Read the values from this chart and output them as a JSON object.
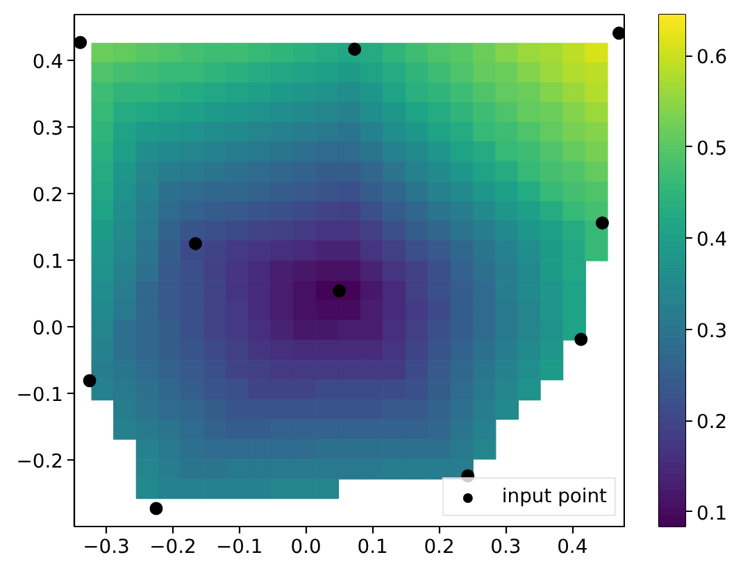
{
  "chart_data": {
    "type": "scatter",
    "marker": "square",
    "clim": [
      0.084,
      0.645
    ],
    "cticks": [
      0.1,
      0.2,
      0.3,
      0.4,
      0.5,
      0.6
    ],
    "xlim": [
      -0.348,
      0.48
    ],
    "ylim": [
      -0.3,
      0.469
    ],
    "xticks": [
      {
        "value": -0.3,
        "label": "−0.3"
      },
      {
        "value": -0.2,
        "label": "−0.2"
      },
      {
        "value": -0.1,
        "label": "−0.1"
      },
      {
        "value": 0,
        "label": "0.0"
      },
      0.1,
      0.2,
      0.3,
      0.4
    ],
    "yticks": [
      {
        "value": -0.2,
        "label": "−0.2"
      },
      {
        "value": -0.1,
        "label": "−0.1"
      },
      {
        "value": 0,
        "label": "0.0"
      },
      0.1,
      0.2,
      0.3,
      0.4
    ],
    "x": [
      -0.305,
      -0.272,
      -0.238,
      -0.204,
      -0.171,
      -0.137,
      -0.103,
      -0.069,
      -0.036,
      -0.002,
      0.032,
      0.066,
      0.099,
      0.133,
      0.167,
      0.2,
      0.234,
      0.268,
      0.302,
      0.335,
      0.369,
      0.403,
      0.436,
      -0.305,
      -0.272,
      -0.238,
      -0.204,
      -0.171,
      -0.137,
      -0.103,
      -0.069,
      -0.036,
      -0.002,
      0.032,
      0.066,
      0.099,
      0.133,
      0.167,
      0.2,
      0.234,
      0.268,
      0.302,
      0.335,
      0.369,
      0.403,
      0.436,
      -0.305,
      -0.272,
      -0.238,
      -0.204,
      -0.171,
      -0.137,
      -0.103,
      -0.069,
      -0.036,
      -0.002,
      0.032,
      0.066,
      0.099,
      0.133,
      0.167,
      0.2,
      0.234,
      0.268,
      0.302,
      0.335,
      0.369,
      0.403,
      0.436,
      -0.305,
      -0.272,
      -0.238,
      -0.204,
      -0.171,
      -0.137,
      -0.103,
      -0.069,
      -0.036,
      -0.002,
      0.032,
      0.066,
      0.099,
      0.133,
      0.167,
      0.2,
      0.234,
      0.268,
      0.302,
      0.335,
      0.369,
      0.403,
      0.436,
      -0.305,
      -0.272,
      -0.238,
      -0.204,
      -0.171,
      -0.137,
      -0.103,
      -0.069,
      -0.036,
      -0.002,
      0.032,
      0.066,
      0.099,
      0.133,
      0.167,
      0.2,
      0.234,
      0.268,
      0.302,
      0.335,
      0.369,
      0.403,
      0.436,
      -0.305,
      -0.272,
      -0.238,
      -0.204,
      -0.171,
      -0.137,
      -0.103,
      -0.069,
      -0.036,
      -0.002,
      0.032,
      0.066,
      0.099,
      0.133,
      0.167,
      0.2,
      0.234,
      0.268,
      0.302,
      0.335,
      0.369,
      0.403,
      0.436,
      -0.305,
      -0.272,
      -0.238,
      -0.204,
      -0.171,
      -0.137,
      -0.103,
      -0.069,
      -0.036,
      -0.002,
      0.032,
      0.066,
      0.099,
      0.133,
      0.167,
      0.2,
      0.234,
      0.268,
      0.302,
      0.335,
      0.369,
      0.403,
      0.436,
      -0.305,
      -0.272,
      -0.238,
      -0.204,
      -0.171,
      -0.137,
      -0.103,
      -0.069,
      -0.036,
      -0.002,
      0.032,
      0.066,
      0.099,
      0.133,
      0.167,
      0.2,
      0.234,
      0.268,
      0.302,
      0.335,
      0.369,
      0.403,
      0.436,
      -0.305,
      -0.272,
      -0.238,
      -0.204,
      -0.171,
      -0.137,
      -0.103,
      -0.069,
      -0.036,
      -0.002,
      0.032,
      0.066,
      0.099,
      0.133,
      0.167,
      0.2,
      0.234,
      0.268,
      0.302,
      0.335,
      0.369,
      0.403,
      0.436,
      -0.305,
      -0.272,
      -0.238,
      -0.204,
      -0.171,
      -0.137,
      -0.103,
      -0.069,
      -0.036,
      -0.002,
      0.032,
      0.066,
      0.099,
      0.133,
      0.167,
      0.2,
      0.234,
      0.268,
      0.302,
      0.335,
      0.369,
      0.403,
      0.436,
      -0.305,
      -0.272,
      -0.238,
      -0.204,
      -0.171,
      -0.137,
      -0.103,
      -0.069,
      -0.036,
      -0.002,
      0.032,
      0.066,
      0.099,
      0.133,
      0.167,
      0.2,
      0.234,
      0.268,
      0.302,
      0.335,
      0.369,
      0.403,
      0.436,
      -0.305,
      -0.272,
      -0.238,
      -0.204,
      -0.171,
      -0.137,
      -0.103,
      -0.069,
      -0.036,
      -0.002,
      0.032,
      0.066,
      0.099,
      0.133,
      0.167,
      0.2,
      0.234,
      0.268,
      0.302,
      0.335,
      0.369,
      0.403,
      -0.305,
      -0.272,
      -0.238,
      -0.204,
      -0.171,
      -0.137,
      -0.103,
      -0.069,
      -0.036,
      -0.002,
      0.032,
      0.066,
      0.099,
      0.133,
      0.167,
      0.2,
      0.234,
      0.268,
      0.302,
      0.335,
      0.369,
      0.403,
      -0.305,
      -0.272,
      -0.238,
      -0.204,
      -0.171,
      -0.137,
      -0.103,
      -0.069,
      -0.036,
      -0.002,
      0.032,
      0.066,
      0.099,
      0.133,
      0.167,
      0.2,
      0.234,
      0.268,
      0.302,
      0.335,
      0.369,
      0.403,
      -0.305,
      -0.272,
      -0.238,
      -0.204,
      -0.171,
      -0.137,
      -0.103,
      -0.069,
      -0.036,
      -0.002,
      0.032,
      0.066,
      0.099,
      0.133,
      0.167,
      0.2,
      0.234,
      0.268,
      0.302,
      0.335,
      0.369,
      0.403,
      -0.305,
      -0.272,
      -0.238,
      -0.204,
      -0.171,
      -0.137,
      -0.103,
      -0.069,
      -0.036,
      -0.002,
      0.032,
      0.066,
      0.099,
      0.133,
      0.167,
      0.2,
      0.234,
      0.268,
      0.302,
      0.335,
      0.369,
      -0.305,
      -0.272,
      -0.238,
      -0.204,
      -0.171,
      -0.137,
      -0.103,
      -0.069,
      -0.036,
      -0.002,
      0.032,
      0.066,
      0.099,
      0.133,
      0.167,
      0.2,
      0.234,
      0.268,
      0.302,
      0.335,
      0.369,
      -0.305,
      -0.272,
      -0.238,
      -0.204,
      -0.171,
      -0.137,
      -0.103,
      -0.069,
      -0.036,
      -0.002,
      0.032,
      0.066,
      0.099,
      0.133,
      0.167,
      0.2,
      0.234,
      0.268,
      0.302,
      0.335,
      -0.272,
      -0.238,
      -0.204,
      -0.171,
      -0.137,
      -0.103,
      -0.069,
      -0.036,
      -0.002,
      0.032,
      0.066,
      0.099,
      0.133,
      0.167,
      0.2,
      0.234,
      0.268,
      0.302,
      -0.272,
      -0.238,
      -0.204,
      -0.171,
      -0.137,
      -0.103,
      -0.069,
      -0.036,
      -0.002,
      0.032,
      0.066,
      0.099,
      0.133,
      0.167,
      0.2,
      0.234,
      0.268,
      -0.238,
      -0.204,
      -0.171,
      -0.137,
      -0.103,
      -0.069,
      -0.036,
      -0.002,
      0.032,
      0.066,
      0.099,
      0.133,
      0.167,
      0.2,
      0.234,
      0.268,
      -0.238,
      -0.204,
      -0.171,
      -0.137,
      -0.103,
      -0.069,
      -0.036,
      -0.002,
      0.032,
      0.066,
      0.099,
      0.133,
      0.167,
      0.2,
      0.234,
      -0.238,
      -0.204,
      -0.171,
      -0.137,
      -0.103,
      -0.069,
      -0.036,
      -0.002,
      0.032
    ],
    "values": [
      0.411,
      0.411,
      0.411,
      0.411,
      0.411,
      0.411,
      0.411,
      0.411,
      0.411,
      0.411,
      0.411,
      0.411,
      0.411,
      0.411,
      0.411,
      0.411,
      0.411,
      0.411,
      0.411,
      0.411,
      0.411,
      0.411,
      0.411,
      0.382,
      0.382,
      0.382,
      0.382,
      0.382,
      0.382,
      0.382,
      0.382,
      0.382,
      0.382,
      0.382,
      0.382,
      0.382,
      0.382,
      0.382,
      0.382,
      0.382,
      0.382,
      0.382,
      0.382,
      0.382,
      0.382,
      0.382,
      0.352,
      0.352,
      0.352,
      0.352,
      0.352,
      0.352,
      0.352,
      0.352,
      0.352,
      0.352,
      0.352,
      0.352,
      0.352,
      0.352,
      0.352,
      0.352,
      0.352,
      0.352,
      0.352,
      0.352,
      0.352,
      0.352,
      0.352,
      0.322,
      0.322,
      0.322,
      0.322,
      0.322,
      0.322,
      0.322,
      0.322,
      0.322,
      0.322,
      0.322,
      0.322,
      0.322,
      0.322,
      0.322,
      0.322,
      0.322,
      0.322,
      0.322,
      0.322,
      0.322,
      0.322,
      0.322,
      0.292,
      0.292,
      0.292,
      0.292,
      0.292,
      0.292,
      0.292,
      0.292,
      0.292,
      0.292,
      0.292,
      0.292,
      0.292,
      0.292,
      0.292,
      0.292,
      0.292,
      0.292,
      0.292,
      0.292,
      0.292,
      0.292,
      0.292,
      0.263,
      0.263,
      0.263,
      0.263,
      0.263,
      0.263,
      0.263,
      0.263,
      0.263,
      0.263,
      0.263,
      0.263,
      0.263,
      0.263,
      0.263,
      0.263,
      0.263,
      0.263,
      0.263,
      0.263,
      0.263,
      0.263,
      0.263,
      0.233,
      0.233,
      0.233,
      0.233,
      0.233,
      0.233,
      0.233,
      0.233,
      0.233,
      0.233,
      0.233,
      0.233,
      0.233,
      0.233,
      0.233,
      0.233,
      0.233,
      0.233,
      0.233,
      0.233,
      0.233,
      0.233,
      0.233,
      0.203,
      0.203,
      0.203,
      0.203,
      0.203,
      0.203,
      0.203,
      0.203,
      0.203,
      0.203,
      0.203,
      0.203,
      0.203,
      0.203,
      0.203,
      0.203,
      0.203,
      0.203,
      0.203,
      0.203,
      0.203,
      0.203,
      0.203,
      0.173,
      0.173,
      0.173,
      0.173,
      0.173,
      0.173,
      0.173,
      0.173,
      0.173,
      0.173,
      0.173,
      0.173,
      0.173,
      0.173,
      0.173,
      0.173,
      0.173,
      0.173,
      0.173,
      0.173,
      0.173,
      0.173,
      0.173,
      0.144,
      0.144,
      0.144,
      0.144,
      0.144,
      0.144,
      0.144,
      0.144,
      0.144,
      0.144,
      0.144,
      0.144,
      0.144,
      0.144,
      0.144,
      0.144,
      0.144,
      0.144,
      0.144,
      0.144,
      0.144,
      0.144,
      0.144,
      0.114,
      0.114,
      0.114,
      0.114,
      0.114,
      0.114,
      0.114,
      0.114,
      0.114,
      0.114,
      0.114,
      0.114,
      0.114,
      0.114,
      0.114,
      0.114,
      0.114,
      0.114,
      0.114,
      0.114,
      0.114,
      0.114,
      0.114,
      0.084,
      0.084,
      0.084,
      0.084,
      0.084,
      0.084,
      0.084,
      0.084,
      0.084,
      0.084,
      0.084,
      0.084,
      0.084,
      0.084,
      0.084,
      0.084,
      0.084,
      0.084,
      0.084,
      0.084,
      0.084,
      0.084,
      0.054,
      0.054,
      0.054,
      0.054,
      0.054,
      0.054,
      0.054,
      0.054,
      0.054,
      0.054,
      0.054,
      0.054,
      0.054,
      0.054,
      0.054,
      0.054,
      0.054,
      0.054,
      0.054,
      0.054,
      0.054,
      0.054,
      0.025,
      0.025,
      0.025,
      0.025,
      0.025,
      0.025,
      0.025,
      0.025,
      0.025,
      0.025,
      0.025,
      0.025,
      0.025,
      0.025,
      0.025,
      0.025,
      0.025,
      0.025,
      0.025,
      0.025,
      0.025,
      0.025,
      -0.005,
      -0.005,
      -0.005,
      -0.005,
      -0.005,
      -0.005,
      -0.005,
      -0.005,
      -0.005,
      -0.005,
      -0.005,
      -0.005,
      -0.005,
      -0.005,
      -0.005,
      -0.005,
      -0.005,
      -0.005,
      -0.005,
      -0.005,
      -0.005,
      -0.005,
      -0.035,
      -0.035,
      -0.035,
      -0.035,
      -0.035,
      -0.035,
      -0.035,
      -0.035,
      -0.035,
      -0.035,
      -0.035,
      -0.035,
      -0.035,
      -0.035,
      -0.035,
      -0.035,
      -0.035,
      -0.035,
      -0.035,
      -0.035,
      -0.035,
      -0.065,
      -0.065,
      -0.065,
      -0.065,
      -0.065,
      -0.065,
      -0.065,
      -0.065,
      -0.065,
      -0.065,
      -0.065,
      -0.065,
      -0.065,
      -0.065,
      -0.065,
      -0.065,
      -0.065,
      -0.065,
      -0.065,
      -0.065,
      -0.065,
      -0.095,
      -0.095,
      -0.095,
      -0.095,
      -0.095,
      -0.095,
      -0.095,
      -0.095,
      -0.095,
      -0.095,
      -0.095,
      -0.095,
      -0.095,
      -0.095,
      -0.095,
      -0.095,
      -0.095,
      -0.095,
      -0.095,
      -0.095,
      -0.124,
      -0.124,
      -0.124,
      -0.124,
      -0.124,
      -0.124,
      -0.124,
      -0.124,
      -0.124,
      -0.124,
      -0.124,
      -0.124,
      -0.124,
      -0.124,
      -0.124,
      -0.124,
      -0.124,
      -0.124,
      -0.154,
      -0.154,
      -0.154,
      -0.154,
      -0.154,
      -0.154,
      -0.154,
      -0.154,
      -0.154,
      -0.154,
      -0.154,
      -0.154,
      -0.154,
      -0.154,
      -0.154,
      -0.154,
      -0.154,
      -0.184,
      -0.184,
      -0.184,
      -0.184,
      -0.184,
      -0.184,
      -0.184,
      -0.184,
      -0.184,
      -0.184,
      -0.184,
      -0.184,
      -0.184,
      -0.184,
      -0.184,
      -0.184,
      -0.214,
      -0.214,
      -0.214,
      -0.214,
      -0.214,
      -0.214,
      -0.214,
      -0.214,
      -0.214,
      -0.214,
      -0.214,
      -0.214,
      -0.214,
      -0.214,
      -0.214,
      -0.243,
      -0.243,
      -0.243,
      -0.243,
      -0.243,
      -0.243,
      -0.243,
      -0.243,
      -0.243
    ],
    "cvalues": [
      0.52,
      0.51,
      0.5,
      0.49,
      0.48,
      0.47,
      0.47,
      0.46,
      0.45,
      0.44,
      0.43,
      0.42,
      0.43,
      0.45,
      0.47,
      0.49,
      0.5,
      0.52,
      0.54,
      0.56,
      0.57,
      0.59,
      0.61,
      0.49,
      0.48,
      0.47,
      0.46,
      0.46,
      0.45,
      0.44,
      0.43,
      0.42,
      0.41,
      0.4,
      0.39,
      0.41,
      0.43,
      0.45,
      0.47,
      0.49,
      0.51,
      0.52,
      0.54,
      0.56,
      0.58,
      0.59,
      0.47,
      0.45,
      0.45,
      0.44,
      0.43,
      0.42,
      0.41,
      0.4,
      0.39,
      0.38,
      0.37,
      0.36,
      0.38,
      0.41,
      0.44,
      0.45,
      0.47,
      0.49,
      0.51,
      0.52,
      0.54,
      0.56,
      0.58,
      0.46,
      0.43,
      0.42,
      0.41,
      0.4,
      0.39,
      0.38,
      0.37,
      0.36,
      0.35,
      0.34,
      0.33,
      0.36,
      0.38,
      0.41,
      0.43,
      0.45,
      0.47,
      0.49,
      0.51,
      0.52,
      0.54,
      0.56,
      0.45,
      0.41,
      0.39,
      0.38,
      0.37,
      0.36,
      0.35,
      0.34,
      0.33,
      0.32,
      0.31,
      0.3,
      0.33,
      0.36,
      0.38,
      0.41,
      0.43,
      0.46,
      0.47,
      0.49,
      0.51,
      0.53,
      0.54,
      0.44,
      0.4,
      0.36,
      0.35,
      0.34,
      0.33,
      0.32,
      0.31,
      0.3,
      0.29,
      0.28,
      0.28,
      0.3,
      0.33,
      0.35,
      0.38,
      0.41,
      0.43,
      0.46,
      0.47,
      0.49,
      0.51,
      0.53,
      0.43,
      0.38,
      0.34,
      0.32,
      0.31,
      0.3,
      0.29,
      0.28,
      0.27,
      0.26,
      0.25,
      0.25,
      0.27,
      0.3,
      0.33,
      0.35,
      0.38,
      0.41,
      0.43,
      0.46,
      0.48,
      0.49,
      0.51,
      0.42,
      0.37,
      0.33,
      0.29,
      0.28,
      0.27,
      0.27,
      0.26,
      0.25,
      0.24,
      0.23,
      0.22,
      0.25,
      0.27,
      0.3,
      0.33,
      0.35,
      0.38,
      0.4,
      0.43,
      0.46,
      0.48,
      0.49,
      0.41,
      0.36,
      0.32,
      0.28,
      0.26,
      0.25,
      0.24,
      0.23,
      0.22,
      0.21,
      0.2,
      0.19,
      0.22,
      0.25,
      0.27,
      0.3,
      0.32,
      0.35,
      0.38,
      0.4,
      0.43,
      0.46,
      0.48,
      0.39,
      0.35,
      0.31,
      0.26,
      0.23,
      0.22,
      0.21,
      0.2,
      0.19,
      0.18,
      0.17,
      0.17,
      0.19,
      0.22,
      0.25,
      0.27,
      0.3,
      0.32,
      0.35,
      0.38,
      0.4,
      0.43,
      0.46,
      0.38,
      0.34,
      0.3,
      0.25,
      0.21,
      0.2,
      0.18,
      0.17,
      0.16,
      0.15,
      0.14,
      0.14,
      0.17,
      0.19,
      0.22,
      0.24,
      0.27,
      0.3,
      0.33,
      0.36,
      0.39,
      0.42,
      0.46,
      0.37,
      0.33,
      0.29,
      0.24,
      0.22,
      0.19,
      0.17,
      0.15,
      0.13,
      0.12,
      0.11,
      0.11,
      0.14,
      0.17,
      0.19,
      0.22,
      0.26,
      0.29,
      0.32,
      0.35,
      0.39,
      0.42,
      0.36,
      0.32,
      0.27,
      0.24,
      0.22,
      0.2,
      0.17,
      0.15,
      0.13,
      0.11,
      0.09,
      0.09,
      0.12,
      0.15,
      0.19,
      0.22,
      0.25,
      0.28,
      0.32,
      0.35,
      0.38,
      0.41,
      0.35,
      0.31,
      0.27,
      0.24,
      0.22,
      0.2,
      0.18,
      0.15,
      0.13,
      0.11,
      0.1,
      0.1,
      0.13,
      0.15,
      0.18,
      0.21,
      0.25,
      0.28,
      0.31,
      0.34,
      0.38,
      0.41,
      0.34,
      0.29,
      0.27,
      0.25,
      0.22,
      0.2,
      0.18,
      0.16,
      0.14,
      0.12,
      0.12,
      0.13,
      0.13,
      0.16,
      0.19,
      0.22,
      0.25,
      0.28,
      0.31,
      0.34,
      0.37,
      0.41,
      0.33,
      0.29,
      0.27,
      0.25,
      0.23,
      0.21,
      0.19,
      0.17,
      0.16,
      0.15,
      0.15,
      0.15,
      0.15,
      0.17,
      0.2,
      0.23,
      0.26,
      0.29,
      0.32,
      0.35,
      0.38,
      0.32,
      0.3,
      0.28,
      0.26,
      0.24,
      0.22,
      0.2,
      0.19,
      0.18,
      0.18,
      0.18,
      0.18,
      0.18,
      0.18,
      0.21,
      0.24,
      0.27,
      0.3,
      0.33,
      0.36,
      0.39,
      0.33,
      0.31,
      0.29,
      0.27,
      0.25,
      0.23,
      0.22,
      0.2,
      0.2,
      0.2,
      0.21,
      0.21,
      0.21,
      0.21,
      0.22,
      0.25,
      0.28,
      0.31,
      0.34,
      0.37,
      0.32,
      0.3,
      0.28,
      0.27,
      0.25,
      0.23,
      0.23,
      0.23,
      0.23,
      0.23,
      0.23,
      0.23,
      0.24,
      0.24,
      0.26,
      0.29,
      0.32,
      0.35,
      0.33,
      0.31,
      0.3,
      0.28,
      0.26,
      0.25,
      0.25,
      0.26,
      0.26,
      0.26,
      0.26,
      0.26,
      0.26,
      0.26,
      0.27,
      0.3,
      0.33,
      0.33,
      0.31,
      0.29,
      0.28,
      0.28,
      0.28,
      0.28,
      0.28,
      0.29,
      0.29,
      0.29,
      0.29,
      0.29,
      0.29,
      0.31,
      0.34,
      0.34,
      0.32,
      0.3,
      0.3,
      0.31,
      0.31,
      0.31,
      0.31,
      0.31,
      0.31,
      0.31,
      0.32,
      0.32,
      0.32,
      0.32,
      0.35,
      0.33,
      0.33,
      0.33,
      0.33,
      0.33,
      0.34,
      0.34,
      0.34
    ],
    "colors": [
      "#6bcd59",
      "#62ca5f",
      "#57c665",
      "#4fc369",
      "#45bf6f",
      "#3ebc73",
      "#3ebc73",
      "#36b877",
      "#30b47a",
      "#2ab07e",
      "#25ab81",
      "#22a784",
      "#25ab81",
      "#30b47a",
      "#3ebc73",
      "#4fc369",
      "#57c665",
      "#6bcd59",
      "#83d34b",
      "#9ad83c",
      "#a5da35",
      "#bdde26",
      "#d7e219",
      "#4fc369",
      "#45bf6f",
      "#3ebc73",
      "#36b877",
      "#36b877",
      "#30b47a",
      "#2ab07e",
      "#25ab81",
      "#22a784",
      "#1fa386",
      "#1e9f88",
      "#1e9a89",
      "#1fa386",
      "#25ab81",
      "#30b47a",
      "#3ebc73",
      "#4fc369",
      "#62ca5f",
      "#6bcd59",
      "#83d34b",
      "#9ad83c",
      "#b2dd2c",
      "#bdde26",
      "#3ebc73",
      "#30b47a",
      "#30b47a",
      "#2ab07e",
      "#25ab81",
      "#22a784",
      "#1fa386",
      "#1e9f88",
      "#1e9a89",
      "#1e978a",
      "#1f928c",
      "#218d8c",
      "#1e978a",
      "#1fa386",
      "#2ab07e",
      "#30b47a",
      "#3ebc73",
      "#4fc369",
      "#62ca5f",
      "#6bcd59",
      "#83d34b",
      "#9ad83c",
      "#b2dd2c",
      "#36b877",
      "#25ab81",
      "#22a784",
      "#1fa386",
      "#1e9f88",
      "#1e9a89",
      "#1e978a",
      "#1f928c",
      "#218d8c",
      "#22898d",
      "#24858d",
      "#26818e",
      "#218d8c",
      "#1e978a",
      "#1fa386",
      "#25ab81",
      "#30b47a",
      "#3ebc73",
      "#4fc369",
      "#62ca5f",
      "#6bcd59",
      "#83d34b",
      "#9ad83c",
      "#30b47a",
      "#1fa386",
      "#1e9a89",
      "#1e978a",
      "#1f928c",
      "#218d8c",
      "#22898d",
      "#24858d",
      "#26818e",
      "#277c8e",
      "#29798e",
      "#2b748e",
      "#26818e",
      "#218d8c",
      "#1e978a",
      "#1fa386",
      "#25ab81",
      "#36b877",
      "#3ebc73",
      "#4fc369",
      "#62ca5f",
      "#77d052",
      "#83d34b",
      "#2ab07e",
      "#1e9f88",
      "#218d8c",
      "#22898d",
      "#24858d",
      "#26818e",
      "#277c8e",
      "#29798e",
      "#2b748e",
      "#2c708e",
      "#2e6b8e",
      "#2e6b8e",
      "#2b748e",
      "#26818e",
      "#22898d",
      "#1e978a",
      "#1fa386",
      "#25ab81",
      "#36b877",
      "#3ebc73",
      "#4fc369",
      "#62ca5f",
      "#77d052",
      "#25ab81",
      "#1e978a",
      "#24858d",
      "#277c8e",
      "#29798e",
      "#2b748e",
      "#2c708e",
      "#2e6b8e",
      "#31668d",
      "#32628d",
      "#355d8c",
      "#355d8c",
      "#31668d",
      "#2b748e",
      "#26818e",
      "#22898d",
      "#1e978a",
      "#1fa386",
      "#25ab81",
      "#36b877",
      "#45bf6f",
      "#4fc369",
      "#62ca5f",
      "#22a784",
      "#1f928c",
      "#26818e",
      "#2c708e",
      "#2e6b8e",
      "#31668d",
      "#31668d",
      "#32628d",
      "#355d8c",
      "#37598c",
      "#39548b",
      "#3b508a",
      "#355d8c",
      "#31668d",
      "#2b748e",
      "#26818e",
      "#22898d",
      "#1e978a",
      "#1e9f88",
      "#25ab81",
      "#36b877",
      "#45bf6f",
      "#4fc369",
      "#1fa386",
      "#218d8c",
      "#277c8e",
      "#2e6b8e",
      "#32628d",
      "#355d8c",
      "#37598c",
      "#39548b",
      "#3b508a",
      "#3d4a89",
      "#404487",
      "#424085",
      "#3b508a",
      "#355d8c",
      "#31668d",
      "#2b748e",
      "#277c8e",
      "#22898d",
      "#1e978a",
      "#1e9f88",
      "#25ab81",
      "#36b877",
      "#45bf6f",
      "#1e9a89",
      "#22898d",
      "#29798e",
      "#32628d",
      "#39548b",
      "#3b508a",
      "#3d4a89",
      "#404487",
      "#424085",
      "#433a83",
      "#453580",
      "#453580",
      "#424085",
      "#3b508a",
      "#355d8c",
      "#31668d",
      "#2b748e",
      "#277c8e",
      "#22898d",
      "#1e978a",
      "#1e9f88",
      "#25ab81",
      "#36b877",
      "#1e978a",
      "#24858d",
      "#2b748e",
      "#355d8c",
      "#3d4a89",
      "#404487",
      "#433a83",
      "#453580",
      "#462f7c",
      "#472a79",
      "#482374",
      "#482374",
      "#453580",
      "#424085",
      "#3b508a",
      "#37598c",
      "#31668d",
      "#2b748e",
      "#26818e",
      "#218d8c",
      "#1e9a89",
      "#22a784",
      "#36b877",
      "#1f928c",
      "#26818e",
      "#2c708e",
      "#37598c",
      "#3b508a",
      "#424085",
      "#453580",
      "#472a79",
      "#481d6f",
      "#47186a",
      "#471163",
      "#471163",
      "#482374",
      "#453580",
      "#424085",
      "#3b508a",
      "#32628d",
      "#2c708e",
      "#277c8e",
      "#22898d",
      "#1e9a89",
      "#22a784",
      "#218d8c",
      "#277c8e",
      "#31668d",
      "#37598c",
      "#3b508a",
      "#404487",
      "#453580",
      "#472a79",
      "#481d6f",
      "#471163",
      "#440357",
      "#440357",
      "#47186a",
      "#472a79",
      "#424085",
      "#3b508a",
      "#355d8c",
      "#2e6b8e",
      "#277c8e",
      "#22898d",
      "#1e978a",
      "#1fa386",
      "#22898d",
      "#29798e",
      "#31668d",
      "#37598c",
      "#3b508a",
      "#404487",
      "#433a83",
      "#472a79",
      "#481d6f",
      "#471163",
      "#460b5e",
      "#460b5e",
      "#481d6f",
      "#472a79",
      "#433a83",
      "#3d4a89",
      "#355d8c",
      "#2e6b8e",
      "#29798e",
      "#24858d",
      "#1e978a",
      "#1fa386",
      "#24858d",
      "#2c708e",
      "#31668d",
      "#355d8c",
      "#3b508a",
      "#404487",
      "#433a83",
      "#462f7c",
      "#482374",
      "#47186a",
      "#47186a",
      "#481d6f",
      "#481d6f",
      "#462f7c",
      "#424085",
      "#3b508a",
      "#355d8c",
      "#2e6b8e",
      "#29798e",
      "#24858d",
      "#1f928c",
      "#1fa386",
      "#26818e",
      "#2c708e",
      "#31668d",
      "#355d8c",
      "#39548b",
      "#3d4a89",
      "#424085",
      "#453580",
      "#462f7c",
      "#472a79",
      "#472a79",
      "#472a79",
      "#472a79",
      "#453580",
      "#404487",
      "#39548b",
      "#32628d",
      "#2c708e",
      "#277c8e",
      "#22898d",
      "#1e978a",
      "#277c8e",
      "#2b748e",
      "#2e6b8e",
      "#32628d",
      "#37598c",
      "#3b508a",
      "#404487",
      "#424085",
      "#433a83",
      "#433a83",
      "#433a83",
      "#433a83",
      "#433a83",
      "#433a83",
      "#3d4a89",
      "#37598c",
      "#31668d",
      "#2b748e",
      "#26818e",
      "#218d8c",
      "#1e9a89",
      "#26818e",
      "#29798e",
      "#2c708e",
      "#31668d",
      "#355d8c",
      "#39548b",
      "#3b508a",
      "#404487",
      "#404487",
      "#404487",
      "#3d4a89",
      "#3d4a89",
      "#3d4a89",
      "#3d4a89",
      "#3b508a",
      "#355d8c",
      "#2e6b8e",
      "#29798e",
      "#24858d",
      "#1f928c",
      "#277c8e",
      "#2b748e",
      "#2e6b8e",
      "#31668d",
      "#355d8c",
      "#39548b",
      "#39548b",
      "#39548b",
      "#39548b",
      "#39548b",
      "#39548b",
      "#39548b",
      "#37598c",
      "#37598c",
      "#32628d",
      "#2c708e",
      "#277c8e",
      "#22898d",
      "#26818e",
      "#29798e",
      "#2b748e",
      "#2e6b8e",
      "#32628d",
      "#355d8c",
      "#355d8c",
      "#32628d",
      "#32628d",
      "#32628d",
      "#32628d",
      "#32628d",
      "#32628d",
      "#32628d",
      "#31668d",
      "#2b748e",
      "#26818e",
      "#26818e",
      "#29798e",
      "#2c708e",
      "#2e6b8e",
      "#2e6b8e",
      "#2e6b8e",
      "#2e6b8e",
      "#2e6b8e",
      "#2c708e",
      "#2c708e",
      "#2c708e",
      "#2c708e",
      "#2c708e",
      "#2c708e",
      "#29798e",
      "#24858d",
      "#24858d",
      "#277c8e",
      "#2b748e",
      "#2b748e",
      "#29798e",
      "#29798e",
      "#29798e",
      "#29798e",
      "#29798e",
      "#29798e",
      "#29798e",
      "#277c8e",
      "#277c8e",
      "#277c8e",
      "#277c8e",
      "#22898d",
      "#26818e",
      "#26818e",
      "#26818e",
      "#26818e",
      "#26818e",
      "#24858d",
      "#24858d",
      "#24858d"
    ],
    "series": [
      {
        "marker": "circle",
        "name": "input point",
        "color": "#000000",
        "x": [
          -0.339,
          0.073,
          0.47,
          -0.166,
          0.05,
          0.445,
          0.413,
          -0.325,
          0.243,
          -0.225
        ],
        "values": [
          0.427,
          0.417,
          0.441,
          0.125,
          0.054,
          0.156,
          -0.019,
          -0.081,
          -0.224,
          -0.273
        ]
      }
    ],
    "legend": "bottom right"
  }
}
